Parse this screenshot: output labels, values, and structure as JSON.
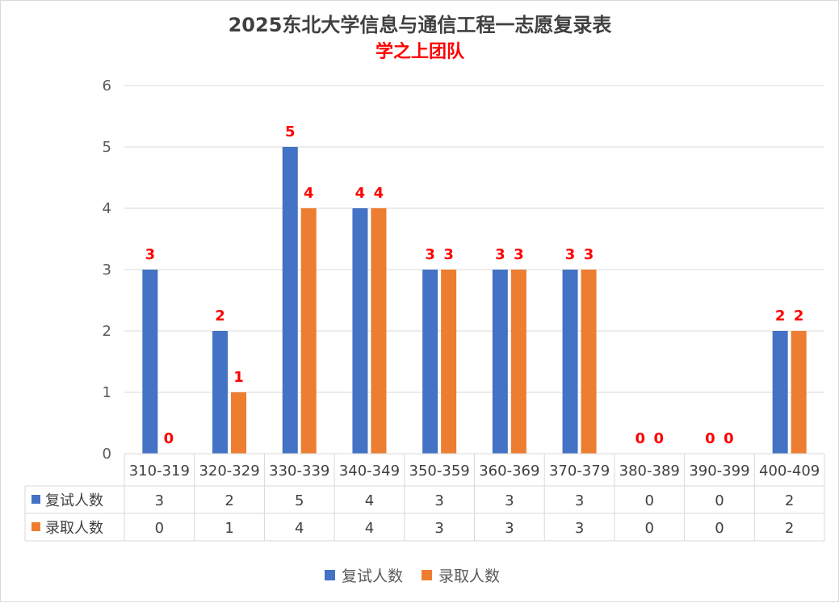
{
  "title": "2025东北大学信息与通信工程一志愿复录表",
  "subtitle": "学之上团队",
  "colors": {
    "series1": "#4472C4",
    "series2": "#ED7D31",
    "data_label": "#FF0000",
    "subtitle": "#FF0000",
    "grid": "#D9D9D9"
  },
  "chart_data": {
    "type": "bar",
    "title": "2025东北大学信息与通信工程一志愿复录表",
    "subtitle": "学之上团队",
    "categories": [
      "310-319",
      "320-329",
      "330-339",
      "340-349",
      "350-359",
      "360-369",
      "370-379",
      "380-389",
      "390-399",
      "400-409"
    ],
    "series": [
      {
        "name": "复试人数",
        "values": [
          3,
          2,
          5,
          4,
          3,
          3,
          3,
          0,
          0,
          2
        ]
      },
      {
        "name": "录取人数",
        "values": [
          0,
          1,
          4,
          4,
          3,
          3,
          3,
          0,
          0,
          2
        ]
      }
    ],
    "ylim": [
      0,
      6
    ],
    "yticks": [
      0,
      1,
      2,
      3,
      4,
      5,
      6
    ],
    "grid": true,
    "legend": "bottom",
    "data_table": true,
    "data_labels": true
  }
}
